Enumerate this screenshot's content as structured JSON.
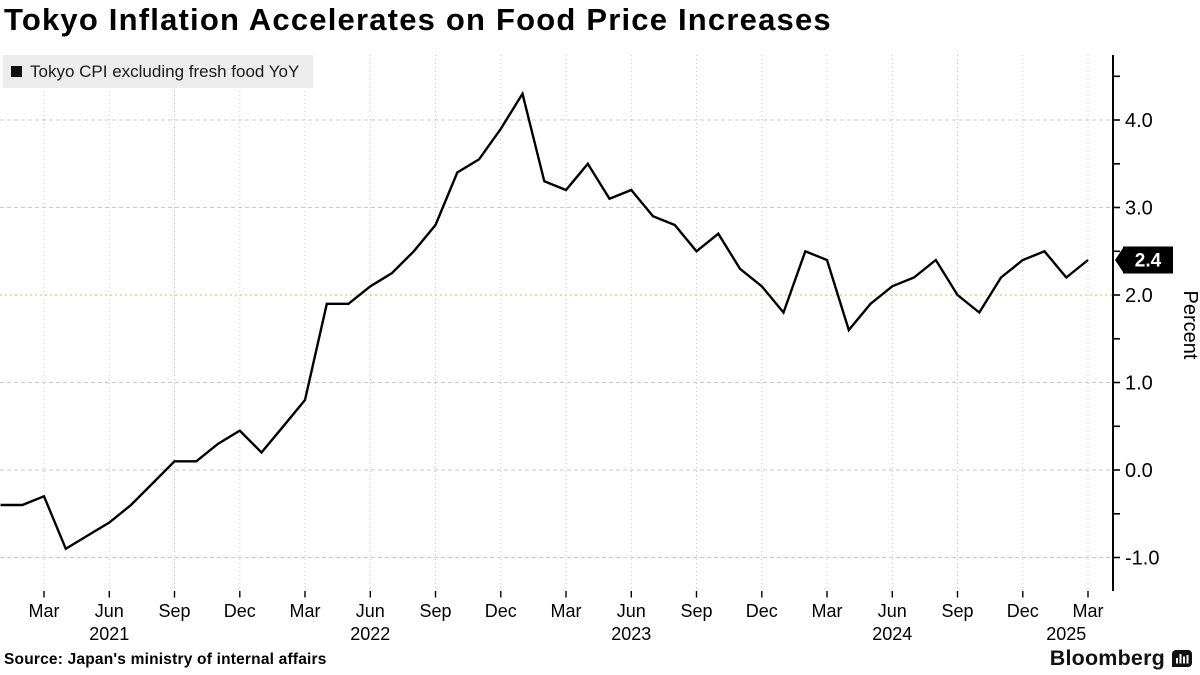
{
  "title": "Tokyo Inflation Accelerates on Food Price Increases",
  "legend": {
    "label": "Tokyo CPI excluding fresh food YoY",
    "marker_color": "#111111"
  },
  "source": "Source: Japan's ministry of internal affairs",
  "branding": "Bloomberg",
  "chart_data": {
    "type": "line",
    "title": "Tokyo Inflation Accelerates on Food Price Increases",
    "ylabel": "Percent",
    "ylim": [
      -1.4,
      4.75
    ],
    "yticks": [
      -1.0,
      0.0,
      1.0,
      2.0,
      3.0,
      4.0
    ],
    "ytick_minor_step": 0.5,
    "grid": true,
    "legend_position": "top-left",
    "reference_line": {
      "value": 2.0,
      "color": "#c8d66e"
    },
    "gridline_color": "#c9c9c9",
    "last_value": {
      "label": "2.4",
      "value": 2.4
    },
    "series": [
      {
        "name": "Tokyo CPI excluding fresh food YoY",
        "color": "#000000",
        "x": [
          "2021-01",
          "2021-02",
          "2021-03",
          "2021-04",
          "2021-05",
          "2021-06",
          "2021-07",
          "2021-08",
          "2021-09",
          "2021-10",
          "2021-11",
          "2021-12",
          "2022-01",
          "2022-02",
          "2022-03",
          "2022-04",
          "2022-05",
          "2022-06",
          "2022-07",
          "2022-08",
          "2022-09",
          "2022-10",
          "2022-11",
          "2022-12",
          "2023-01",
          "2023-02",
          "2023-03",
          "2023-04",
          "2023-05",
          "2023-06",
          "2023-07",
          "2023-08",
          "2023-09",
          "2023-10",
          "2023-11",
          "2023-12",
          "2024-01",
          "2024-02",
          "2024-03",
          "2024-04",
          "2024-05",
          "2024-06",
          "2024-07",
          "2024-08",
          "2024-09",
          "2024-10",
          "2024-11",
          "2024-12",
          "2025-01",
          "2025-02",
          "2025-03"
        ],
        "values": [
          -0.4,
          -0.4,
          -0.3,
          -0.9,
          -0.75,
          -0.6,
          -0.4,
          -0.15,
          0.1,
          0.1,
          0.3,
          0.45,
          0.2,
          0.5,
          0.8,
          1.9,
          1.9,
          2.1,
          2.25,
          2.5,
          2.8,
          3.4,
          3.55,
          3.9,
          4.3,
          3.3,
          3.2,
          3.5,
          3.1,
          3.2,
          2.9,
          2.8,
          2.5,
          2.7,
          2.3,
          2.1,
          1.8,
          2.5,
          2.4,
          1.6,
          1.9,
          2.1,
          2.2,
          2.4,
          2.0,
          1.8,
          2.2,
          2.4,
          2.5,
          2.2,
          2.4
        ]
      }
    ],
    "x_ticks": [
      {
        "month": "2021-03",
        "label": "Mar"
      },
      {
        "month": "2021-06",
        "label": "Jun"
      },
      {
        "month": "2021-09",
        "label": "Sep"
      },
      {
        "month": "2021-12",
        "label": "Dec"
      },
      {
        "month": "2022-03",
        "label": "Mar"
      },
      {
        "month": "2022-06",
        "label": "Jun"
      },
      {
        "month": "2022-09",
        "label": "Sep"
      },
      {
        "month": "2022-12",
        "label": "Dec"
      },
      {
        "month": "2023-03",
        "label": "Mar"
      },
      {
        "month": "2023-06",
        "label": "Jun"
      },
      {
        "month": "2023-09",
        "label": "Sep"
      },
      {
        "month": "2023-12",
        "label": "Dec"
      },
      {
        "month": "2024-03",
        "label": "Mar"
      },
      {
        "month": "2024-06",
        "label": "Jun"
      },
      {
        "month": "2024-09",
        "label": "Sep"
      },
      {
        "month": "2024-12",
        "label": "Dec"
      },
      {
        "month": "2025-03",
        "label": "Mar"
      }
    ],
    "year_labels": [
      {
        "label": "2021",
        "at": "2021-06"
      },
      {
        "label": "2022",
        "at": "2022-06"
      },
      {
        "label": "2023",
        "at": "2023-06"
      },
      {
        "label": "2024",
        "at": "2024-06"
      },
      {
        "label": "2025",
        "at": "2025-02"
      }
    ]
  }
}
